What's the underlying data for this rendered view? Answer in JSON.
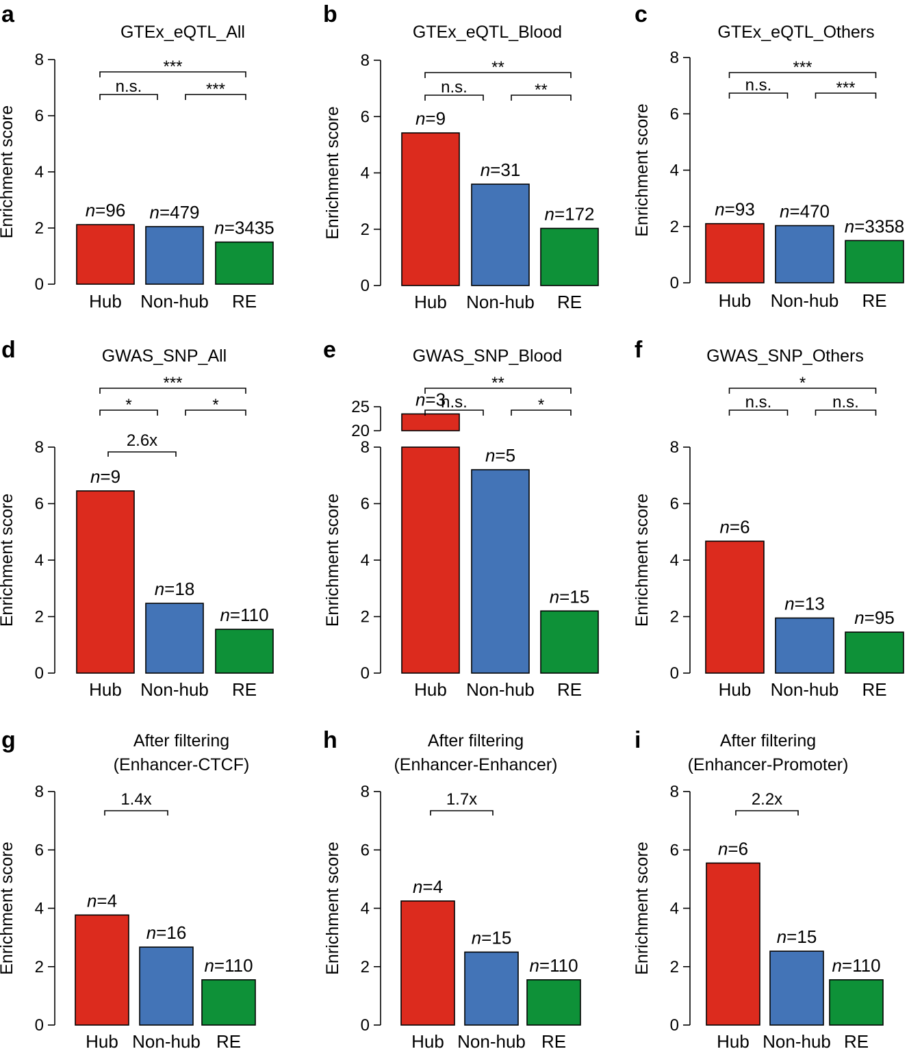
{
  "colors": {
    "hub": "#dc2b1e",
    "nonhub": "#4374b7",
    "re": "#0e9138"
  },
  "chart_data": [
    {
      "panel": "a",
      "type": "bar",
      "title": [
        "GTEx_eQTL_All"
      ],
      "ylabel": "Enrichment score",
      "ylim": [
        0,
        8
      ],
      "yticks": [
        "0",
        "2",
        "4",
        "6",
        "8"
      ],
      "categories": [
        "Hub",
        "Non-hub",
        "RE"
      ],
      "values": [
        2.12,
        2.05,
        1.5
      ],
      "n_labels": [
        "96",
        "479",
        "3435"
      ],
      "comparisons": [
        {
          "from": 0,
          "to": 1,
          "label": "n.s."
        },
        {
          "from": 1,
          "to": 2,
          "label": "***"
        },
        {
          "from": 0,
          "to": 2,
          "label": "***"
        }
      ]
    },
    {
      "panel": "b",
      "type": "bar",
      "title": [
        "GTEx_eQTL_Blood"
      ],
      "ylabel": "Enrichment score",
      "ylim": [
        0,
        8
      ],
      "yticks": [
        "0",
        "2",
        "4",
        "6",
        "8"
      ],
      "categories": [
        "Hub",
        "Non-hub",
        "RE"
      ],
      "values": [
        5.42,
        3.6,
        2.03
      ],
      "n_labels": [
        "9",
        "31",
        "172"
      ],
      "comparisons": [
        {
          "from": 0,
          "to": 1,
          "label": "n.s."
        },
        {
          "from": 1,
          "to": 2,
          "label": "**"
        },
        {
          "from": 0,
          "to": 2,
          "label": "**"
        }
      ]
    },
    {
      "panel": "c",
      "type": "bar",
      "title": [
        "GTEx_eQTL_Others"
      ],
      "ylabel": "Enrichment score",
      "ylim": [
        0,
        8
      ],
      "yticks": [
        "0",
        "2",
        "4",
        "6",
        "8"
      ],
      "categories": [
        "Hub",
        "Non-hub",
        "RE"
      ],
      "values": [
        2.1,
        2.03,
        1.5
      ],
      "n_labels": [
        "93",
        "470",
        "3358"
      ],
      "comparisons": [
        {
          "from": 0,
          "to": 1,
          "label": "n.s."
        },
        {
          "from": 1,
          "to": 2,
          "label": "***"
        },
        {
          "from": 0,
          "to": 2,
          "label": "***"
        }
      ]
    },
    {
      "panel": "d",
      "type": "bar",
      "title": [
        "GWAS_SNP_All"
      ],
      "ylabel": "Enrichment score",
      "ylim": [
        0,
        8
      ],
      "yticks": [
        "0",
        "2",
        "4",
        "6",
        "8"
      ],
      "categories": [
        "Hub",
        "Non-hub",
        "RE"
      ],
      "values": [
        6.45,
        2.47,
        1.55
      ],
      "n_labels": [
        "9",
        "18",
        "110"
      ],
      "fold_change": "2.6x",
      "comparisons": [
        {
          "from": 0,
          "to": 1,
          "label": "*"
        },
        {
          "from": 1,
          "to": 2,
          "label": "*"
        },
        {
          "from": 0,
          "to": 2,
          "label": "***"
        }
      ]
    },
    {
      "panel": "e",
      "type": "bar",
      "title": [
        "GWAS_SNP_Blood"
      ],
      "ylabel": "Enrichment score",
      "ylim": [
        0,
        8
      ],
      "yticks": [
        "0",
        "2",
        "4",
        "6",
        "8"
      ],
      "axis_break": {
        "upper_ticks": [
          "20",
          "25"
        ],
        "upper_range": [
          20,
          25
        ]
      },
      "categories": [
        "Hub",
        "Non-hub",
        "RE"
      ],
      "values": [
        23.5,
        7.2,
        2.2
      ],
      "n_labels": [
        "3",
        "5",
        "15"
      ],
      "comparisons": [
        {
          "from": 0,
          "to": 1,
          "label": "n.s."
        },
        {
          "from": 1,
          "to": 2,
          "label": "*"
        },
        {
          "from": 0,
          "to": 2,
          "label": "**"
        }
      ]
    },
    {
      "panel": "f",
      "type": "bar",
      "title": [
        "GWAS_SNP_Others"
      ],
      "ylabel": "Enrichment score",
      "ylim": [
        0,
        8
      ],
      "yticks": [
        "0",
        "2",
        "4",
        "6",
        "8"
      ],
      "categories": [
        "Hub",
        "Non-hub",
        "RE"
      ],
      "values": [
        4.67,
        1.95,
        1.45
      ],
      "n_labels": [
        "6",
        "13",
        "95"
      ],
      "comparisons": [
        {
          "from": 0,
          "to": 1,
          "label": "n.s."
        },
        {
          "from": 1,
          "to": 2,
          "label": "n.s."
        },
        {
          "from": 0,
          "to": 2,
          "label": "*"
        }
      ]
    },
    {
      "panel": "g",
      "type": "bar",
      "title": [
        "After filtering",
        "(Enhancer-CTCF)"
      ],
      "ylabel": "Enrichment score",
      "ylim": [
        0,
        8
      ],
      "yticks": [
        "0",
        "2",
        "4",
        "6",
        "8"
      ],
      "categories": [
        "Hub",
        "Non-hub",
        "RE"
      ],
      "values": [
        3.77,
        2.67,
        1.55
      ],
      "n_labels": [
        "4",
        "16",
        "110"
      ],
      "fold_change": "1.4x",
      "comparisons": []
    },
    {
      "panel": "h",
      "type": "bar",
      "title": [
        "After filtering",
        "(Enhancer-Enhancer)"
      ],
      "ylabel": "Enrichment score",
      "ylim": [
        0,
        8
      ],
      "yticks": [
        "0",
        "2",
        "4",
        "6",
        "8"
      ],
      "categories": [
        "Hub",
        "Non-hub",
        "RE"
      ],
      "values": [
        4.25,
        2.5,
        1.55
      ],
      "n_labels": [
        "4",
        "15",
        "110"
      ],
      "fold_change": "1.7x",
      "comparisons": []
    },
    {
      "panel": "i",
      "type": "bar",
      "title": [
        "After filtering",
        "(Enhancer-Promoter)"
      ],
      "ylabel": "Enrichment score",
      "ylim": [
        0,
        8
      ],
      "yticks": [
        "0",
        "2",
        "4",
        "6",
        "8"
      ],
      "categories": [
        "Hub",
        "Non-hub",
        "RE"
      ],
      "values": [
        5.55,
        2.53,
        1.55
      ],
      "n_labels": [
        "6",
        "15",
        "110"
      ],
      "fold_change": "2.2x",
      "comparisons": []
    }
  ]
}
